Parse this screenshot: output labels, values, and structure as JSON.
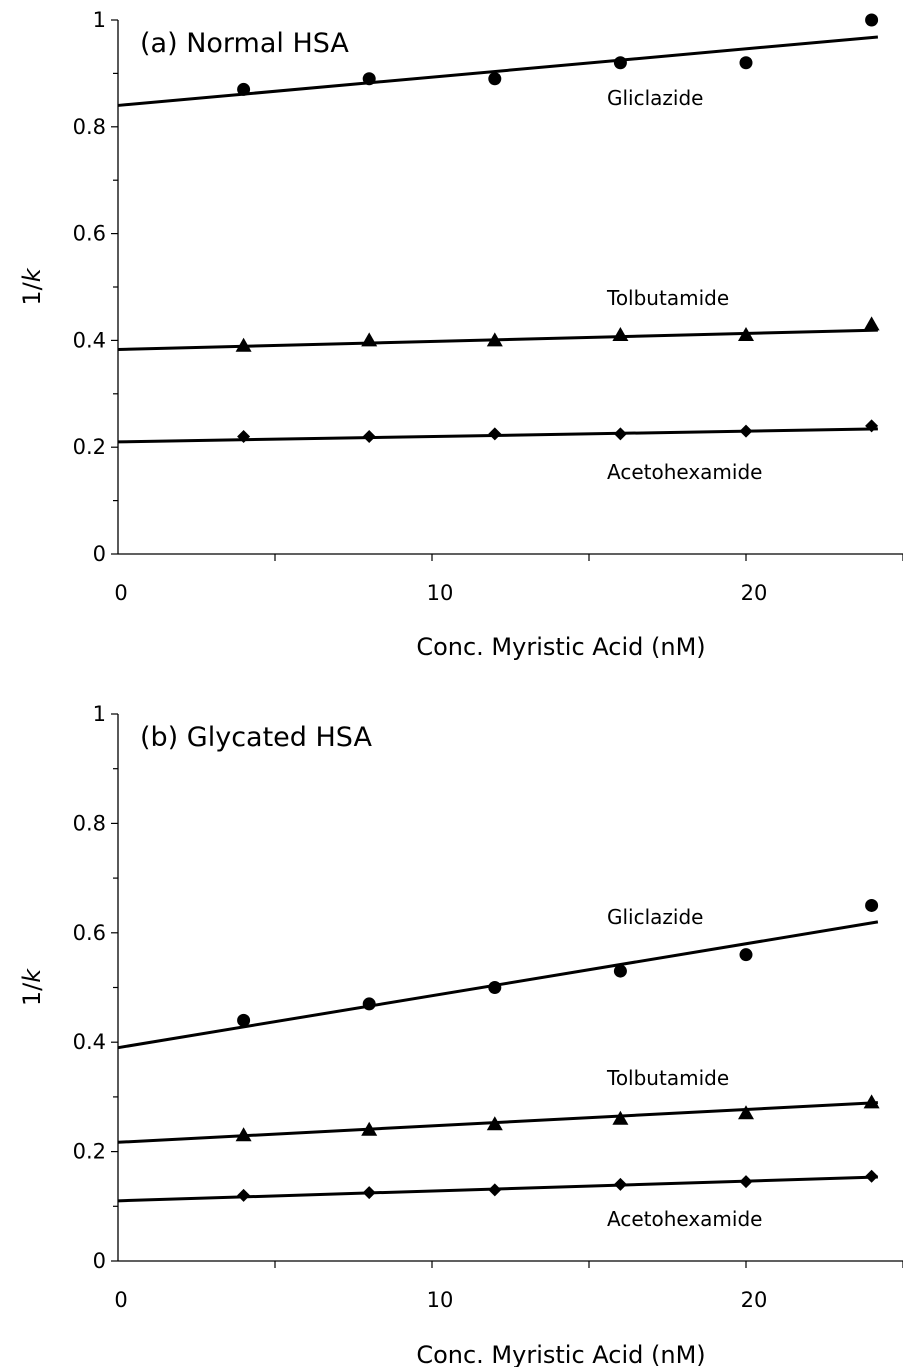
{
  "chart_data": [
    {
      "type": "scatter",
      "title": "(a) Normal HSA",
      "xlabel": "Conc. Myristic Acid (nM)",
      "ylabel": "1/k",
      "xlim": [
        0,
        25
      ],
      "ylim": [
        0,
        1
      ],
      "x_ticks": [
        0,
        10,
        20
      ],
      "y_ticks": [
        0,
        0.2,
        0.4,
        0.6,
        0.8,
        1
      ],
      "x_tick_labels": [
        "0",
        "10",
        "20"
      ],
      "y_tick_labels": [
        "0",
        "0.2",
        "0.4",
        "0.6",
        "0.8",
        "1"
      ],
      "grid": false,
      "legend": "none (series labelled inline)",
      "series": [
        {
          "name": "Gliclazide",
          "marker": "circle",
          "x": [
            4,
            8,
            12,
            16,
            20,
            24
          ],
          "y": [
            0.87,
            0.89,
            0.89,
            0.92,
            0.92,
            1.0
          ],
          "fit": {
            "intercept": 0.84,
            "slope": 0.0053
          }
        },
        {
          "name": "Tolbutamide",
          "marker": "triangle",
          "x": [
            4,
            8,
            12,
            16,
            20,
            24
          ],
          "y": [
            0.39,
            0.4,
            0.4,
            0.41,
            0.41,
            0.43
          ],
          "fit": {
            "intercept": 0.383,
            "slope": 0.0015
          }
        },
        {
          "name": "Acetohexamide",
          "marker": "diamond",
          "x": [
            4,
            8,
            12,
            16,
            20,
            24
          ],
          "y": [
            0.22,
            0.22,
            0.225,
            0.225,
            0.23,
            0.24
          ],
          "fit": {
            "intercept": 0.21,
            "slope": 0.001
          }
        }
      ]
    },
    {
      "type": "scatter",
      "title": "(b) Glycated HSA",
      "xlabel": "Conc. Myristic Acid (nM)",
      "ylabel": "1/k",
      "xlim": [
        0,
        25
      ],
      "ylim": [
        0,
        1
      ],
      "x_ticks": [
        0,
        10,
        20
      ],
      "y_ticks": [
        0,
        0.2,
        0.4,
        0.6,
        0.8,
        1
      ],
      "x_tick_labels": [
        "0",
        "10",
        "20"
      ],
      "y_tick_labels": [
        "0",
        "0.2",
        "0.4",
        "0.6",
        "0.8",
        "1"
      ],
      "grid": false,
      "legend": "none (series labelled inline)",
      "series": [
        {
          "name": "Gliclazide",
          "marker": "circle",
          "x": [
            4,
            8,
            12,
            16,
            20,
            24
          ],
          "y": [
            0.44,
            0.47,
            0.5,
            0.53,
            0.56,
            0.65
          ],
          "fit": {
            "intercept": 0.39,
            "slope": 0.0095
          }
        },
        {
          "name": "Tolbutamide",
          "marker": "triangle",
          "x": [
            4,
            8,
            12,
            16,
            20,
            24
          ],
          "y": [
            0.23,
            0.24,
            0.25,
            0.26,
            0.27,
            0.29
          ],
          "fit": {
            "intercept": 0.217,
            "slope": 0.003
          }
        },
        {
          "name": "Acetohexamide",
          "marker": "diamond",
          "x": [
            4,
            8,
            12,
            16,
            20,
            24
          ],
          "y": [
            0.12,
            0.125,
            0.13,
            0.14,
            0.145,
            0.155
          ],
          "fit": {
            "intercept": 0.11,
            "slope": 0.0018
          }
        }
      ]
    }
  ]
}
